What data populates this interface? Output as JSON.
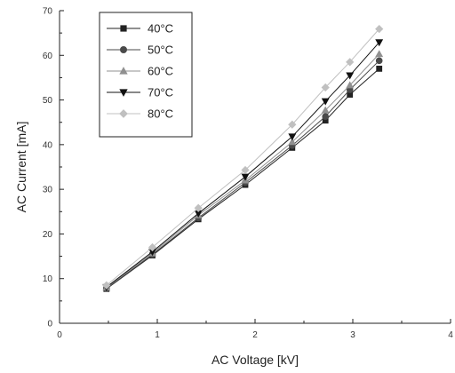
{
  "chart_data": {
    "type": "line",
    "title": "",
    "xlabel": "AC Voltage [kV]",
    "ylabel": "AC Current [mA]",
    "xlim": [
      0,
      4
    ],
    "ylim": [
      0,
      70
    ],
    "x_ticks": [
      "0",
      "1",
      "2",
      "3",
      "4"
    ],
    "y_ticks": [
      "0",
      "10",
      "20",
      "30",
      "40",
      "50",
      "60",
      "70"
    ],
    "grid": false,
    "legend_position": "top-left",
    "x": [
      0.48,
      0.95,
      1.42,
      1.9,
      2.38,
      2.72,
      2.97,
      3.27
    ],
    "series": [
      {
        "name": "40°C",
        "marker": "square",
        "color": "#222222",
        "values": [
          7.7,
          15.2,
          23.3,
          31.0,
          39.3,
          45.4,
          51.2,
          57.0
        ]
      },
      {
        "name": "50°C",
        "marker": "circle",
        "color": "#4a4a4a",
        "values": [
          7.8,
          15.4,
          23.6,
          31.5,
          39.8,
          46.3,
          52.3,
          58.8
        ]
      },
      {
        "name": "60°C",
        "marker": "triangle-up",
        "color": "#909090",
        "values": [
          8.0,
          15.7,
          24.2,
          32.0,
          40.6,
          47.7,
          53.3,
          60.3
        ]
      },
      {
        "name": "70°C",
        "marker": "triangle-down",
        "color": "#111111",
        "values": [
          8.1,
          16.0,
          24.6,
          32.8,
          41.8,
          49.7,
          55.5,
          62.9
        ]
      },
      {
        "name": "80°C",
        "marker": "diamond",
        "color": "#c0c0c0",
        "values": [
          8.5,
          17.0,
          25.8,
          34.3,
          44.5,
          52.8,
          58.5,
          65.9
        ]
      }
    ]
  }
}
